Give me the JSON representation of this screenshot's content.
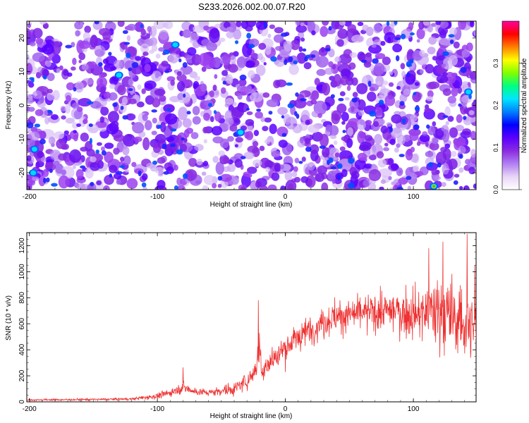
{
  "page_title": "S233.2026.002.00.07.R20",
  "chart_data": [
    {
      "type": "heatmap",
      "title": "S233.2026.002.00.07.R20",
      "xlabel": "Height of straight line (km)",
      "ylabel": "Frequency (Hz)",
      "xlim": [
        -202,
        149
      ],
      "ylim": [
        -25,
        25
      ],
      "x_ticks": [
        -200,
        -100,
        0,
        100
      ],
      "y_ticks": [
        -20,
        -10,
        0,
        10,
        20
      ],
      "colorbar": {
        "label": "Normalized spectral amplitude",
        "range": [
          0,
          0.4
        ],
        "ticks": [
          0.0,
          0.1,
          0.2,
          0.3
        ],
        "colormap": [
          "#ffffff",
          "#e9d5f7",
          "#b07ff2",
          "#8a2be2",
          "#5a00ff",
          "#0000ff",
          "#0080ff",
          "#00e5ff",
          "#00ff80",
          "#80ff00",
          "#ffff00",
          "#ff8000",
          "#ff0000",
          "#ff00a0"
        ]
      },
      "hotspots": [
        {
          "x": 116,
          "y": -24,
          "value": 0.3
        },
        {
          "x": -196,
          "y": -13,
          "value": 0.12
        },
        {
          "x": -130,
          "y": 9,
          "value": 0.12
        },
        {
          "x": -86,
          "y": 18,
          "value": 0.12
        },
        {
          "x": -35,
          "y": -8,
          "value": 0.12
        },
        {
          "x": -197,
          "y": -20,
          "value": 0.12
        },
        {
          "x": 143,
          "y": 4,
          "value": 0.12
        }
      ]
    },
    {
      "type": "line",
      "xlabel": "Height of straight line (km)",
      "ylabel": "SNR (10 * v/v)",
      "xlim": [
        -202,
        149
      ],
      "ylim": [
        0,
        1300
      ],
      "x_ticks": [
        -200,
        -100,
        0,
        100
      ],
      "y_ticks": [
        0,
        200,
        400,
        600,
        800,
        1000,
        1200
      ],
      "color": "#ee3030",
      "envelope": {
        "x": [
          -202,
          -150,
          -120,
          -100,
          -90,
          -80,
          -70,
          -60,
          -50,
          -40,
          -30,
          -25,
          -22,
          -20,
          -18,
          -15,
          -10,
          0,
          10,
          20,
          30,
          40,
          60,
          80,
          100,
          110,
          120,
          130,
          140,
          149
        ],
        "mean": [
          15,
          18,
          22,
          45,
          70,
          110,
          80,
          70,
          85,
          100,
          160,
          220,
          300,
          420,
          200,
          300,
          320,
          420,
          500,
          560,
          620,
          660,
          680,
          700,
          680,
          690,
          700,
          660,
          600,
          550
        ],
        "spread": [
          10,
          12,
          14,
          30,
          40,
          60,
          40,
          40,
          50,
          70,
          90,
          110,
          150,
          200,
          120,
          140,
          150,
          160,
          150,
          160,
          170,
          180,
          180,
          200,
          280,
          330,
          380,
          420,
          420,
          420
        ]
      },
      "peaks": [
        {
          "x": -80,
          "y": 265
        },
        {
          "x": -21,
          "y": 780
        },
        {
          "x": 112,
          "y": 1180
        },
        {
          "x": 123,
          "y": 1230
        },
        {
          "x": 142,
          "y": 1290
        },
        {
          "x": 148,
          "y": 1050
        }
      ]
    }
  ]
}
